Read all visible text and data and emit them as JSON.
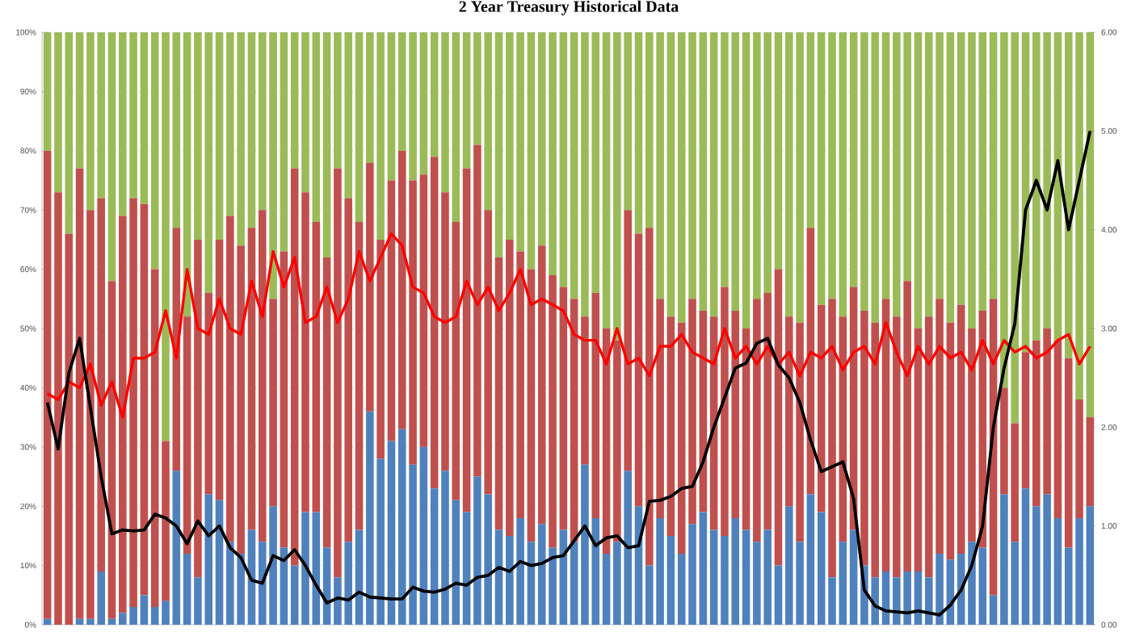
{
  "chart_data": {
    "type": "bar",
    "title": "2 Year Treasury  Historical Data",
    "stacked": true,
    "grid": "y",
    "categories": [
      null,
      null,
      null,
      null,
      null,
      null,
      null,
      null,
      null,
      null,
      null,
      null,
      null,
      null,
      null,
      null,
      null,
      null,
      null,
      null,
      null,
      null,
      null,
      null,
      null,
      null,
      null,
      null,
      null,
      null,
      null,
      null,
      null,
      null,
      null,
      null,
      null,
      null,
      null,
      null,
      null,
      null,
      null,
      null,
      null,
      null,
      null,
      null,
      null,
      null,
      null,
      null,
      null,
      null,
      null,
      null,
      null,
      null,
      null,
      null,
      null,
      null,
      null,
      null,
      null,
      null,
      null,
      null,
      null,
      null,
      null,
      null,
      null,
      null,
      null,
      null,
      null,
      null,
      null,
      null,
      null,
      null,
      null,
      null,
      null,
      null,
      null,
      null,
      null,
      null,
      null,
      null,
      null,
      null,
      null,
      null,
      null,
      null
    ],
    "ylim": [
      0,
      100
    ],
    "yticks": [
      {
        "value": 0,
        "label": "0%"
      },
      {
        "value": 10,
        "label": "10%"
      },
      {
        "value": 20,
        "label": "20%"
      },
      {
        "value": 30,
        "label": "30%"
      },
      {
        "value": 40,
        "label": "40%"
      },
      {
        "value": 50,
        "label": "50%"
      },
      {
        "value": 60,
        "label": "60%"
      },
      {
        "value": 70,
        "label": "70%"
      },
      {
        "value": 80,
        "label": "80%"
      },
      {
        "value": 90,
        "label": "90%"
      },
      {
        "value": 100,
        "label": "100%"
      }
    ],
    "y2lim": [
      0,
      6
    ],
    "y2ticks": [
      {
        "value": 0,
        "label": "0.00"
      },
      {
        "value": 1,
        "label": "1.00"
      },
      {
        "value": 2,
        "label": "2.00"
      },
      {
        "value": 3,
        "label": "3.00"
      },
      {
        "value": 4,
        "label": "4.00"
      },
      {
        "value": 5,
        "label": "5.00"
      },
      {
        "value": 6,
        "label": "6.00"
      }
    ],
    "series": [
      {
        "color": "#4f81bd",
        "values": [
          1,
          0,
          0,
          1,
          1,
          9,
          1,
          2,
          3,
          5,
          3,
          4,
          26,
          12,
          8,
          22,
          21,
          14,
          12,
          16,
          14,
          20,
          13,
          10,
          19,
          19,
          13,
          8,
          14,
          16,
          36,
          28,
          31,
          33,
          27,
          30,
          23,
          26,
          21,
          19,
          25,
          22,
          16,
          15,
          18,
          14,
          17,
          13,
          16,
          14,
          27,
          18,
          12,
          14,
          26,
          20,
          10,
          18,
          15,
          12,
          17,
          19,
          16,
          15,
          18,
          16,
          14,
          16,
          10,
          20,
          14,
          22,
          19,
          8,
          14,
          16,
          10,
          8,
          9,
          8,
          9,
          9,
          8,
          12,
          11,
          12,
          14,
          13,
          5,
          22,
          14,
          23,
          20,
          22,
          18,
          13,
          18,
          20
        ]
      },
      {
        "color": "#c0504d",
        "values": [
          79,
          73,
          66,
          76,
          69,
          63,
          57,
          67,
          69,
          66,
          57,
          27,
          41,
          40,
          57,
          34,
          44,
          55,
          52,
          51,
          56,
          35,
          50,
          67,
          54,
          49,
          49,
          69,
          58,
          52,
          42,
          37,
          44,
          47,
          48,
          46,
          56,
          47,
          47,
          58,
          56,
          48,
          46,
          50,
          45,
          46,
          47,
          46,
          41,
          41,
          25,
          38,
          38,
          34,
          44,
          46,
          57,
          37,
          37,
          39,
          38,
          34,
          36,
          42,
          35,
          34,
          41,
          40,
          50,
          32,
          37,
          45,
          35,
          47,
          38,
          41,
          43,
          43,
          46,
          44,
          49,
          41,
          44,
          43,
          40,
          42,
          36,
          40,
          50,
          18,
          20,
          23,
          28,
          28,
          30,
          32,
          20,
          15
        ]
      },
      {
        "color": "#9bbb59",
        "values": [
          20,
          27,
          34,
          23,
          30,
          28,
          42,
          31,
          28,
          29,
          40,
          69,
          33,
          48,
          35,
          44,
          35,
          31,
          36,
          33,
          30,
          45,
          37,
          23,
          27,
          32,
          38,
          23,
          28,
          32,
          22,
          35,
          25,
          20,
          25,
          24,
          21,
          27,
          32,
          23,
          19,
          30,
          38,
          35,
          37,
          40,
          36,
          41,
          43,
          45,
          48,
          44,
          50,
          52,
          30,
          34,
          33,
          45,
          48,
          49,
          45,
          47,
          48,
          43,
          47,
          50,
          45,
          44,
          40,
          48,
          49,
          33,
          46,
          45,
          48,
          43,
          47,
          49,
          45,
          48,
          42,
          50,
          48,
          45,
          49,
          46,
          50,
          47,
          45,
          60,
          66,
          54,
          52,
          50,
          52,
          55,
          62,
          65
        ]
      },
      {
        "type": "line",
        "color": "#ff0000",
        "values": [
          39,
          38,
          41,
          40,
          44,
          37,
          41,
          35,
          45,
          45,
          46,
          53,
          45,
          60,
          50,
          49,
          55,
          50,
          49,
          58,
          52,
          63,
          57,
          62,
          51,
          52,
          57,
          51,
          55,
          63,
          58,
          62,
          66,
          64,
          57,
          56,
          52,
          51,
          52,
          58,
          54,
          57,
          53,
          56,
          60,
          54,
          55,
          54,
          53,
          49,
          48,
          48,
          44,
          50,
          44,
          45,
          42,
          47,
          47,
          49,
          46,
          45,
          44,
          50,
          45,
          47,
          44,
          47,
          44,
          46,
          42,
          46,
          45,
          47,
          43,
          46,
          47,
          44,
          51,
          46,
          42,
          47,
          44,
          47,
          45,
          46,
          43,
          48,
          44,
          48,
          46,
          47,
          45,
          46,
          48,
          49,
          44,
          47
        ]
      },
      {
        "type": "line",
        "axis": "y2",
        "color": "#000000",
        "values": [
          2.25,
          1.78,
          2.55,
          2.9,
          2.2,
          1.5,
          0.92,
          0.96,
          0.95,
          0.96,
          1.12,
          1.08,
          1.0,
          0.82,
          1.05,
          0.9,
          1.0,
          0.78,
          0.68,
          0.45,
          0.42,
          0.7,
          0.65,
          0.76,
          0.6,
          0.4,
          0.22,
          0.27,
          0.25,
          0.33,
          0.28,
          0.27,
          0.26,
          0.26,
          0.38,
          0.34,
          0.33,
          0.36,
          0.42,
          0.4,
          0.48,
          0.5,
          0.58,
          0.54,
          0.64,
          0.6,
          0.62,
          0.68,
          0.7,
          0.85,
          1.0,
          0.8,
          0.88,
          0.9,
          0.78,
          0.8,
          1.25,
          1.26,
          1.3,
          1.38,
          1.4,
          1.65,
          2.0,
          2.3,
          2.6,
          2.65,
          2.85,
          2.9,
          2.63,
          2.5,
          2.25,
          1.87,
          1.55,
          1.6,
          1.65,
          1.28,
          0.35,
          0.19,
          0.14,
          0.13,
          0.12,
          0.14,
          0.12,
          0.1,
          0.2,
          0.35,
          0.6,
          1.0,
          2.0,
          2.6,
          3.05,
          4.2,
          4.5,
          4.2,
          4.7,
          4.0,
          4.5,
          5.0
        ]
      }
    ]
  }
}
